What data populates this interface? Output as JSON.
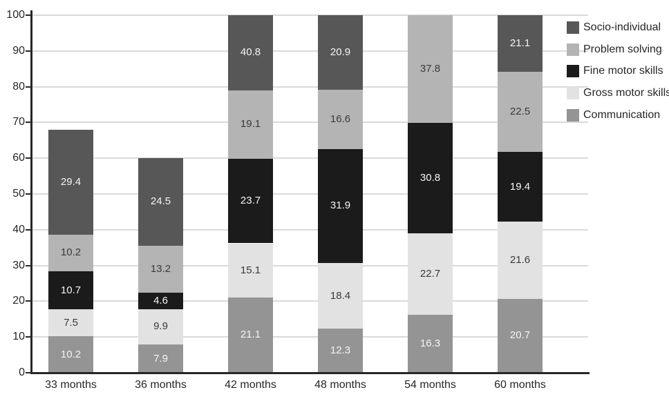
{
  "chart_data": {
    "type": "bar",
    "stacked": true,
    "title": "",
    "xlabel": "",
    "ylabel": "",
    "categories": [
      "33 months",
      "36 months",
      "42 months",
      "48 months",
      "54 months",
      "60 months"
    ],
    "series": [
      {
        "name": "Communication",
        "color": "#949494",
        "label_color": "#f5f5f5",
        "values": [
          10.2,
          7.9,
          21.1,
          12.3,
          16.3,
          20.7
        ]
      },
      {
        "name": "Gross motor skills",
        "color": "#e2e2e2",
        "label_color": "#3a3a3a",
        "values": [
          7.5,
          9.9,
          15.1,
          18.4,
          22.7,
          21.6
        ]
      },
      {
        "name": "Fine motor skills",
        "color": "#1b1b1b",
        "label_color": "#f5f5f5",
        "values": [
          10.7,
          4.6,
          23.7,
          31.9,
          30.8,
          19.4
        ]
      },
      {
        "name": "Problem solving",
        "color": "#b4b4b4",
        "label_color": "#3a3a3a",
        "values": [
          10.2,
          13.2,
          19.1,
          16.6,
          37.8,
          22.5
        ]
      },
      {
        "name": "Socio-individual",
        "color": "#575757",
        "label_color": "#f5f5f5",
        "values": [
          29.4,
          24.5,
          40.8,
          20.9,
          null,
          21.1
        ]
      }
    ],
    "legend": {
      "position": "top-right",
      "items": [
        "Socio-individual",
        "Problem solving",
        "Fine motor skills",
        "Gross motor skills",
        "Communication"
      ]
    },
    "ylim": [
      0,
      100
    ],
    "yticks": [
      0,
      10,
      20,
      30,
      40,
      50,
      60,
      70,
      80,
      90,
      100
    ],
    "grid": true,
    "clip_overflow_at_ymax": true,
    "colors": {
      "background": "#ffffff",
      "axis": "#262626",
      "gridline": "#d9d9d9",
      "tick_label": "#262626"
    }
  }
}
